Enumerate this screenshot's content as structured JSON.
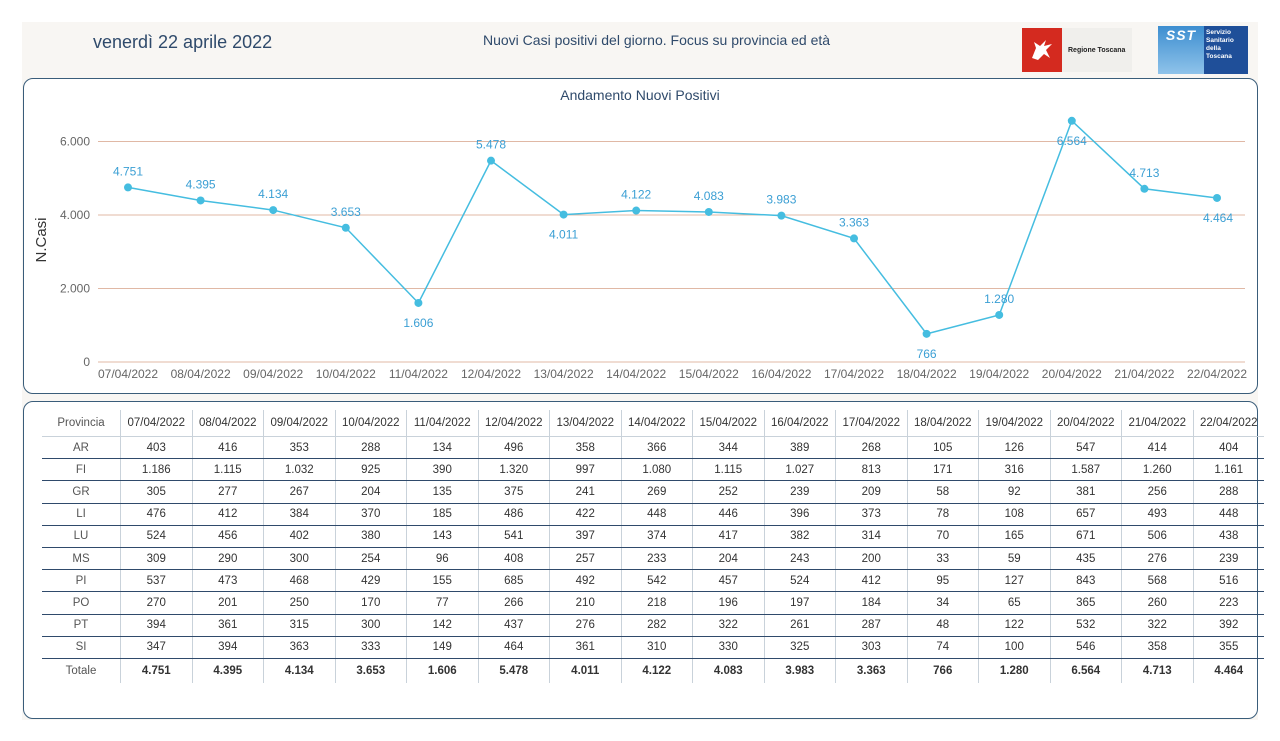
{
  "header": {
    "date": "venerdì 22 aprile 2022",
    "title": "Nuovi Casi positivi del giorno. Focus su provincia ed età",
    "logo_region": "Regione Toscana",
    "logo_sst_mark": "SST",
    "logo_sst_text": "Servizio Sanitario della Toscana"
  },
  "chart_data": {
    "type": "line",
    "title": "Andamento Nuovi Positivi",
    "ylabel": "N.Casi",
    "xlabel": "",
    "ylim": [
      0,
      6500
    ],
    "yticks": [
      0,
      2000,
      4000,
      6000
    ],
    "ytick_labels": [
      "0",
      "2.000",
      "4.000",
      "6.000"
    ],
    "grid": "horizontal",
    "colors": {
      "line": "#45bde0",
      "grid": "#e0b8a5",
      "label": "#3b9fd4"
    },
    "categories": [
      "07/04/2022",
      "08/04/2022",
      "09/04/2022",
      "10/04/2022",
      "11/04/2022",
      "12/04/2022",
      "13/04/2022",
      "14/04/2022",
      "15/04/2022",
      "16/04/2022",
      "17/04/2022",
      "18/04/2022",
      "19/04/2022",
      "20/04/2022",
      "21/04/2022",
      "22/04/2022"
    ],
    "values": [
      4751,
      4395,
      4134,
      3653,
      1606,
      5478,
      4011,
      4122,
      4083,
      3983,
      3363,
      766,
      1280,
      6564,
      4713,
      4464
    ],
    "value_labels": [
      "4.751",
      "4.395",
      "4.134",
      "3.653",
      "1.606",
      "5.478",
      "4.011",
      "4.122",
      "4.083",
      "3.983",
      "3.363",
      "766",
      "1.280",
      "6.564",
      "4.713",
      "4.464"
    ],
    "label_position": [
      "above",
      "above",
      "above",
      "above",
      "below",
      "above",
      "below",
      "above",
      "above",
      "above",
      "above",
      "below",
      "above",
      "below",
      "above",
      "below"
    ]
  },
  "table": {
    "header_first": "Provincia",
    "columns": [
      "07/04/2022",
      "08/04/2022",
      "09/04/2022",
      "10/04/2022",
      "11/04/2022",
      "12/04/2022",
      "13/04/2022",
      "14/04/2022",
      "15/04/2022",
      "16/04/2022",
      "17/04/2022",
      "18/04/2022",
      "19/04/2022",
      "20/04/2022",
      "21/04/2022",
      "22/04/2022"
    ],
    "rows": [
      {
        "label": "AR",
        "cells": [
          "403",
          "416",
          "353",
          "288",
          "134",
          "496",
          "358",
          "366",
          "344",
          "389",
          "268",
          "105",
          "126",
          "547",
          "414",
          "404"
        ]
      },
      {
        "label": "FI",
        "cells": [
          "1.186",
          "1.115",
          "1.032",
          "925",
          "390",
          "1.320",
          "997",
          "1.080",
          "1.115",
          "1.027",
          "813",
          "171",
          "316",
          "1.587",
          "1.260",
          "1.161"
        ]
      },
      {
        "label": "GR",
        "cells": [
          "305",
          "277",
          "267",
          "204",
          "135",
          "375",
          "241",
          "269",
          "252",
          "239",
          "209",
          "58",
          "92",
          "381",
          "256",
          "288"
        ]
      },
      {
        "label": "LI",
        "cells": [
          "476",
          "412",
          "384",
          "370",
          "185",
          "486",
          "422",
          "448",
          "446",
          "396",
          "373",
          "78",
          "108",
          "657",
          "493",
          "448"
        ]
      },
      {
        "label": "LU",
        "cells": [
          "524",
          "456",
          "402",
          "380",
          "143",
          "541",
          "397",
          "374",
          "417",
          "382",
          "314",
          "70",
          "165",
          "671",
          "506",
          "438"
        ]
      },
      {
        "label": "MS",
        "cells": [
          "309",
          "290",
          "300",
          "254",
          "96",
          "408",
          "257",
          "233",
          "204",
          "243",
          "200",
          "33",
          "59",
          "435",
          "276",
          "239"
        ]
      },
      {
        "label": "PI",
        "cells": [
          "537",
          "473",
          "468",
          "429",
          "155",
          "685",
          "492",
          "542",
          "457",
          "524",
          "412",
          "95",
          "127",
          "843",
          "568",
          "516"
        ]
      },
      {
        "label": "PO",
        "cells": [
          "270",
          "201",
          "250",
          "170",
          "77",
          "266",
          "210",
          "218",
          "196",
          "197",
          "184",
          "34",
          "65",
          "365",
          "260",
          "223"
        ]
      },
      {
        "label": "PT",
        "cells": [
          "394",
          "361",
          "315",
          "300",
          "142",
          "437",
          "276",
          "282",
          "322",
          "261",
          "287",
          "48",
          "122",
          "532",
          "322",
          "392"
        ]
      },
      {
        "label": "SI",
        "cells": [
          "347",
          "394",
          "363",
          "333",
          "149",
          "464",
          "361",
          "310",
          "330",
          "325",
          "303",
          "74",
          "100",
          "546",
          "358",
          "355"
        ]
      }
    ],
    "total": {
      "label": "Totale",
      "cells": [
        "4.751",
        "4.395",
        "4.134",
        "3.653",
        "1.606",
        "5.478",
        "4.011",
        "4.122",
        "4.083",
        "3.983",
        "3.363",
        "766",
        "1.280",
        "6.564",
        "4.713",
        "4.464"
      ]
    }
  }
}
